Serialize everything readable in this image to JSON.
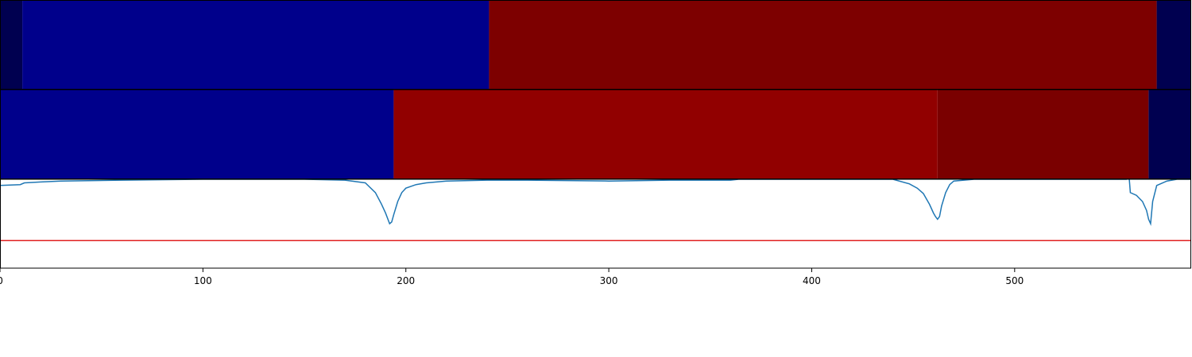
{
  "chart_data": {
    "type": "segmentation-plot",
    "x_ticks": [
      0,
      100,
      200,
      300,
      400,
      500
    ],
    "xlim": [
      0,
      587
    ],
    "segment_tracks": [
      {
        "name": "",
        "segments": [
          {
            "start": 0,
            "end": 11,
            "color": "#000050"
          },
          {
            "start": 11,
            "end": 241,
            "color": "#00008b"
          },
          {
            "start": 241,
            "end": 570,
            "color": "#7d0000"
          },
          {
            "start": 570,
            "end": 587,
            "color": "#000050"
          }
        ]
      },
      {
        "name": "",
        "segments": [
          {
            "start": 0,
            "end": 194,
            "color": "#00008b"
          },
          {
            "start": 194,
            "end": 462,
            "color": "#910000"
          },
          {
            "start": 462,
            "end": 566,
            "color": "#7a0000"
          },
          {
            "start": 566,
            "end": 587,
            "color": "#000050"
          }
        ]
      }
    ],
    "line_panel": {
      "ylim": [
        0,
        1
      ],
      "threshold": 0.31,
      "threshold_color": "#e02020",
      "line_color": "#1f77b4",
      "series": {
        "x": [
          0,
          10,
          12,
          20,
          30,
          60,
          100,
          150,
          170,
          180,
          185,
          188,
          190,
          192,
          193,
          194,
          196,
          198,
          200,
          205,
          210,
          220,
          240,
          260,
          300,
          330,
          360,
          364,
          366,
          400,
          440,
          448,
          452,
          455,
          458,
          460,
          461,
          462,
          463,
          464,
          466,
          468,
          470,
          480,
          500,
          540,
          555,
          556,
          557,
          560,
          563,
          565,
          566,
          567,
          568,
          570,
          575,
          580,
          587
        ],
        "y": [
          0.93,
          0.94,
          0.96,
          0.97,
          0.98,
          0.99,
          1.0,
          1.0,
          0.99,
          0.96,
          0.85,
          0.72,
          0.62,
          0.5,
          0.52,
          0.6,
          0.75,
          0.85,
          0.9,
          0.94,
          0.96,
          0.98,
          0.99,
          0.99,
          0.98,
          0.99,
          0.99,
          1.0,
          1.0,
          1.0,
          1.0,
          0.95,
          0.9,
          0.84,
          0.72,
          0.62,
          0.58,
          0.55,
          0.58,
          0.7,
          0.85,
          0.94,
          0.98,
          1.0,
          1.0,
          1.0,
          1.0,
          1.15,
          0.85,
          0.82,
          0.75,
          0.65,
          0.55,
          0.5,
          0.75,
          0.93,
          0.98,
          1.0,
          1.0
        ]
      }
    }
  }
}
